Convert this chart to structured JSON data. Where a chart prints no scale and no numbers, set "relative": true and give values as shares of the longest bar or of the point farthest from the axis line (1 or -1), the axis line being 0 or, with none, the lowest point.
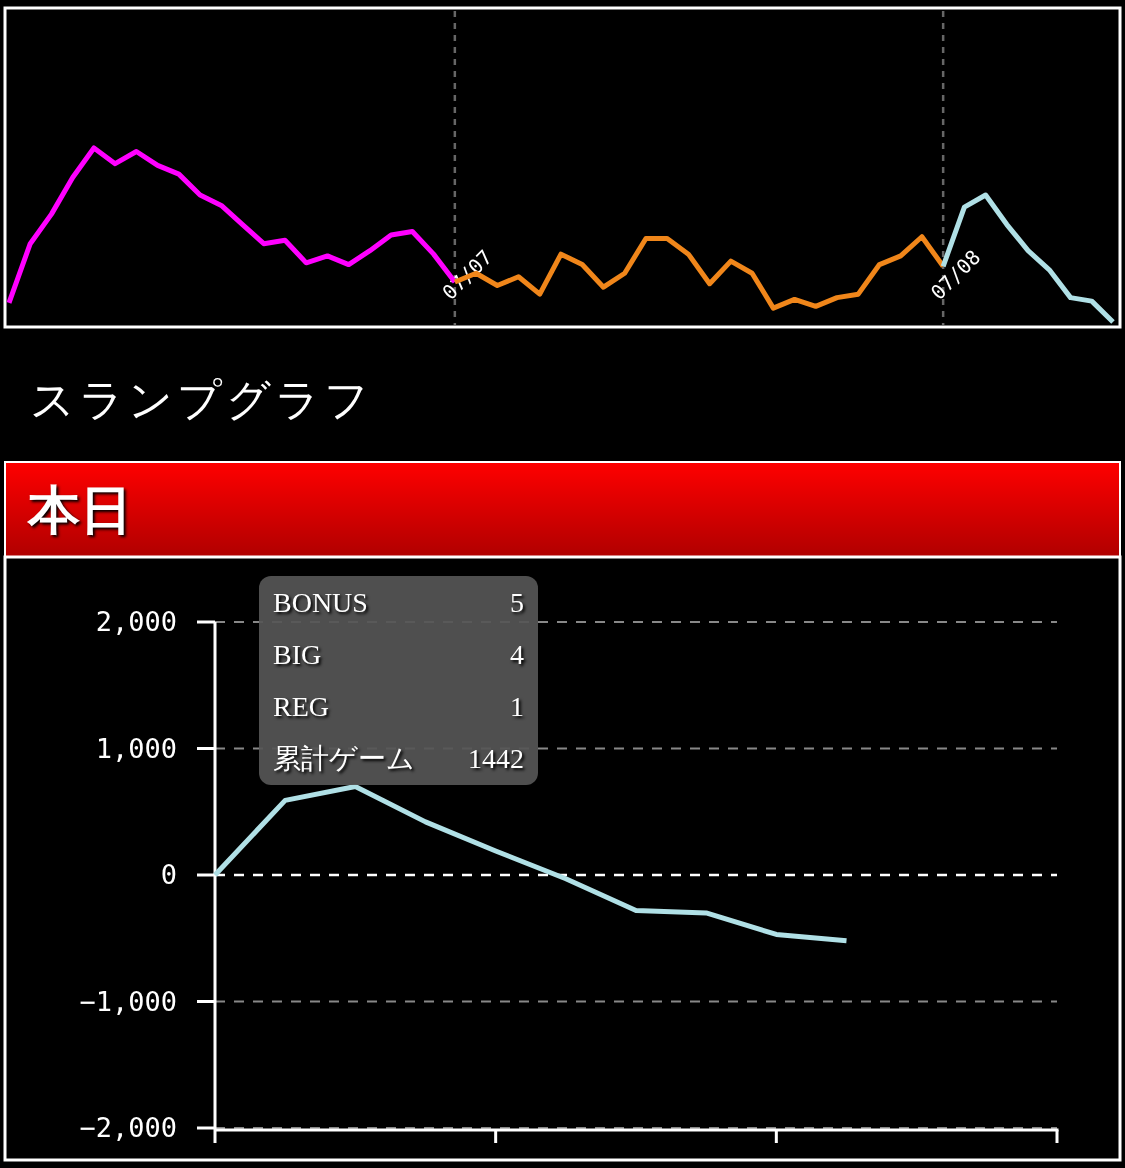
{
  "chart_data": [
    {
      "type": "line",
      "relative": true,
      "line_style": "solid",
      "categories": [
        null,
        null,
        null,
        null,
        null,
        null,
        null,
        null,
        null,
        null,
        null,
        null,
        null,
        null,
        null,
        null,
        null,
        null,
        null,
        null,
        null,
        null,
        null,
        null,
        null,
        null,
        null,
        null,
        null,
        null,
        null,
        null,
        null,
        null,
        null,
        null,
        null,
        null,
        null,
        null,
        null,
        null,
        null,
        null,
        null,
        null,
        null,
        null,
        null,
        null,
        null,
        null,
        null
      ],
      "series": [
        {
          "color": "#ff00ff",
          "values": [
            0.11,
            0.45,
            0.62,
            0.83,
            1,
            0.91,
            0.98,
            0.9,
            0.85,
            0.73,
            0.67,
            0.56,
            0.45,
            0.47,
            0.34,
            0.38,
            0.33,
            0.41,
            0.5,
            0.52,
            0.39,
            0.23,
            null,
            null,
            null,
            null,
            null,
            null,
            null,
            null,
            null,
            null,
            null,
            null,
            null,
            null,
            null,
            null,
            null,
            null,
            null,
            null,
            null,
            null,
            null,
            null,
            null,
            null,
            null,
            null,
            null,
            null,
            null
          ]
        },
        {
          "color": "#f0861a",
          "values": [
            null,
            null,
            null,
            null,
            null,
            null,
            null,
            null,
            null,
            null,
            null,
            null,
            null,
            null,
            null,
            null,
            null,
            null,
            null,
            null,
            null,
            0.23,
            0.28,
            0.21,
            0.26,
            0.16,
            0.39,
            0.33,
            0.2,
            0.28,
            0.48,
            0.48,
            0.39,
            0.22,
            0.35,
            0.28,
            0.08,
            0.13,
            0.09,
            0.14,
            0.16,
            0.33,
            0.38,
            0.49,
            0.32,
            null,
            null,
            null,
            null,
            null,
            null,
            null,
            null
          ]
        },
        {
          "color": "#b0e0e6",
          "values": [
            null,
            null,
            null,
            null,
            null,
            null,
            null,
            null,
            null,
            null,
            null,
            null,
            null,
            null,
            null,
            null,
            null,
            null,
            null,
            null,
            null,
            null,
            null,
            null,
            null,
            null,
            null,
            null,
            null,
            null,
            null,
            null,
            null,
            null,
            null,
            null,
            null,
            null,
            null,
            null,
            null,
            null,
            null,
            null,
            0.32,
            0.66,
            0.73,
            0.56,
            0.41,
            0.3,
            0.14,
            0.12,
            0
          ]
        }
      ],
      "annotations": [
        "07/07",
        "07/08"
      ]
    },
    {
      "type": "line",
      "title": "スランプグラフ",
      "subtitle": "本日",
      "categories": [
        null,
        null,
        null,
        null,
        null,
        null,
        null,
        null,
        null,
        null,
        null,
        null,
        null
      ],
      "ylim": [
        -2000,
        2000
      ],
      "yticks": [
        {
          "value": 2000,
          "label": "2,000"
        },
        {
          "value": 1000,
          "label": "1,000"
        },
        {
          "value": 0,
          "label": "0"
        },
        {
          "value": -1000,
          "label": "−1,000"
        },
        {
          "value": -2000,
          "label": "−2,000"
        }
      ],
      "grid": "y",
      "line_style": "solid",
      "series": [
        {
          "color": "#b0e0e6",
          "values": [
            0,
            590,
            700,
            420,
            190,
            -30,
            -280,
            -300,
            -470,
            -520,
            null,
            null,
            null
          ]
        }
      ],
      "ref_lines": [
        {
          "axis": "y",
          "value": 0,
          "color": "#ffffff",
          "line_style": "dashed"
        }
      ],
      "annotations": [
        "BONUS",
        "5",
        "BIG",
        "4",
        "REG",
        "1",
        "累計ゲーム",
        "1442"
      ]
    }
  ]
}
